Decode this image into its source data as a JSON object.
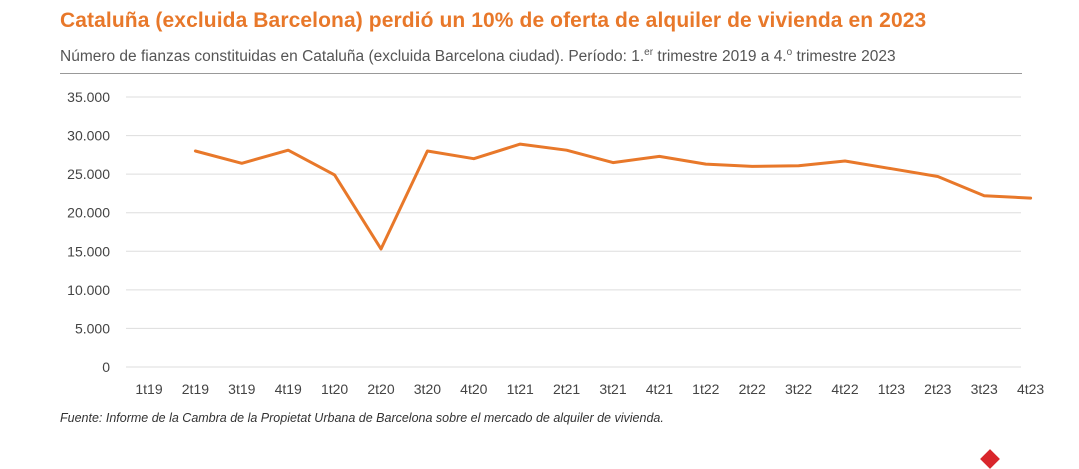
{
  "title": "Cataluña (excluida Barcelona) perdió un 10% de oferta de alquiler de vivienda en 2023",
  "subtitle_pre": "Número de fianzas constituidas en Cataluña (excluida Barcelona ciudad). Período: 1.",
  "subtitle_sup1": "er",
  "subtitle_mid": " trimestre 2019 a 4.",
  "subtitle_sup2": "o",
  "subtitle_post": " trimestre 2023",
  "source": "Fuente: Informe de la Cambra de la Propietat Urbana de Barcelona sobre el mercado de alquiler de vivienda.",
  "colors": {
    "title": "#e8782a",
    "line": "#e8782a",
    "grid": "#dddddd"
  },
  "chart_data": {
    "type": "line",
    "categories": [
      "1t19",
      "2t19",
      "3t19",
      "4t19",
      "1t20",
      "2t20",
      "3t20",
      "4t20",
      "1t21",
      "2t21",
      "3t21",
      "4t21",
      "1t22",
      "2t22",
      "3t22",
      "4t22",
      "1t23",
      "2t23",
      "3t23",
      "4t23"
    ],
    "series": [
      {
        "values": [
          null,
          28000,
          26400,
          28100,
          24900,
          15300,
          28000,
          27000,
          28900,
          28100,
          26500,
          27300,
          26300,
          26000,
          26100,
          26700,
          25700,
          24700,
          22200,
          21900
        ]
      }
    ],
    "ylim": [
      0,
      35000
    ],
    "yticks": [
      0,
      5000,
      10000,
      15000,
      20000,
      25000,
      30000,
      35000
    ],
    "ytick_labels": [
      "0",
      "5.000",
      "10.000",
      "15.000",
      "20.000",
      "25.000",
      "30.000",
      "35.000"
    ],
    "grid": true
  }
}
